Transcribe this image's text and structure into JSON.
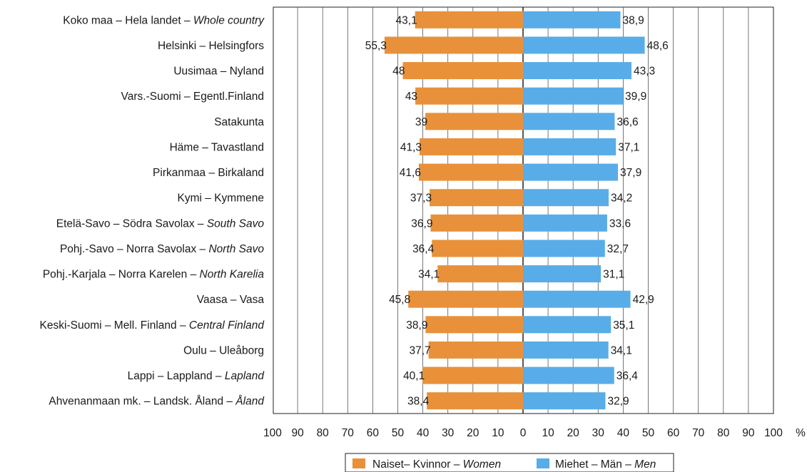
{
  "chart_data": {
    "type": "bar",
    "orientation": "horizontal",
    "layout": "diverging",
    "categories": [
      [
        "Koko maa – Hela landet – ",
        "Whole country"
      ],
      [
        "Helsinki – Helsingfors",
        ""
      ],
      [
        "Uusimaa – Nyland",
        ""
      ],
      [
        "Vars.-Suomi – Egentl.Finland",
        ""
      ],
      [
        "Satakunta",
        ""
      ],
      [
        "Häme – Tavastland",
        ""
      ],
      [
        "Pirkanmaa – Birkaland",
        ""
      ],
      [
        "Kymi – Kymmene",
        ""
      ],
      [
        "Etelä-Savo – Södra Savolax – ",
        "South Savo"
      ],
      [
        "Pohj.-Savo – Norra Savolax – ",
        "North Savo"
      ],
      [
        "Pohj.-Karjala – Norra Karelen – ",
        "North Karelia"
      ],
      [
        "Vaasa – Vasa",
        ""
      ],
      [
        "Keski-Suomi – Mell. Finland – ",
        "Central Finland"
      ],
      [
        "Oulu – Uleåborg",
        ""
      ],
      [
        "Lappi – Lappland – ",
        "Lapland"
      ],
      [
        "Ahvenanmaan mk. – Landsk. Åland – ",
        "Åland"
      ]
    ],
    "series": [
      {
        "name": [
          "Naiset– Kvinnor – ",
          "Women"
        ],
        "side": "left",
        "color": "#e8913a",
        "values": [
          43.1,
          55.3,
          48,
          43,
          39,
          41.3,
          41.6,
          37.3,
          36.9,
          36.4,
          34.1,
          45.8,
          38.9,
          37.7,
          40.1,
          38.4
        ],
        "labels": [
          "43,1",
          "55,3",
          "48",
          "43",
          "39",
          "41,3",
          "41,6",
          "37,3",
          "36,9",
          "36,4",
          "34,1",
          "45,8",
          "38,9",
          "37,7",
          "40,1",
          "38,4"
        ]
      },
      {
        "name": [
          "Miehet – Män – ",
          "Men"
        ],
        "side": "right",
        "color": "#58ade8",
        "values": [
          38.9,
          48.6,
          43.3,
          39.9,
          36.6,
          37.1,
          37.9,
          34.2,
          33.6,
          32.7,
          31.1,
          42.9,
          35.1,
          34.1,
          36.4,
          32.9
        ],
        "labels": [
          "38,9",
          "48,6",
          "43,3",
          "39,9",
          "36,6",
          "37,1",
          "37,9",
          "34,2",
          "33,6",
          "32,7",
          "31,1",
          "42,9",
          "35,1",
          "34,1",
          "36,4",
          "32,9"
        ]
      }
    ],
    "x_ticks": [
      "100",
      "90",
      "80",
      "70",
      "60",
      "50",
      "40",
      "30",
      "20",
      "10",
      "0",
      "10",
      "20",
      "30",
      "40",
      "50",
      "60",
      "70",
      "80",
      "90",
      "100"
    ],
    "xlim": [
      -100,
      100
    ],
    "unit_label": "%",
    "grid": true,
    "legend_position": "bottom-center"
  }
}
